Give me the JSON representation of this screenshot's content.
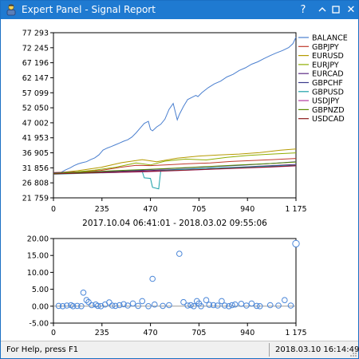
{
  "window": {
    "title": "Expert Panel - Signal Report",
    "icon": "expert-advisor-icon",
    "buttons": {
      "help": "?",
      "collapse": "chevron-up-icon",
      "close": "✕",
      "maximize": "maximize-icon"
    }
  },
  "statusbar": {
    "help_text": "For Help, press F1",
    "datetime": "2018.03.10 16:14:49"
  },
  "colors": {
    "titlebar": "#1f7ad1",
    "balance": "#4a7fcf",
    "marker": "#4a86d8",
    "zero_line": "#9a9a9a"
  },
  "chart_data": [
    {
      "type": "line",
      "title": "",
      "subtitle": "2017.10.04 06:41:01 - 2018.03.02 09:55:06",
      "xlim": [
        0,
        1175
      ],
      "ylim": [
        21759,
        77293
      ],
      "x_ticks": [
        "0",
        "235",
        "470",
        "705",
        "940",
        "1 175"
      ],
      "y_ticks": [
        "77 293",
        "72 245",
        "67 196",
        "62 147",
        "57 099",
        "52 050",
        "47 002",
        "41 953",
        "36 905",
        "31 856",
        "26 808",
        "21 759"
      ],
      "legend_position": "right",
      "series": [
        {
          "name": "BALANCE",
          "color": "#4a7fcf",
          "x": [
            0,
            30,
            60,
            80,
            100,
            120,
            140,
            160,
            180,
            200,
            220,
            240,
            260,
            280,
            300,
            320,
            340,
            360,
            380,
            400,
            420,
            440,
            460,
            470,
            480,
            500,
            520,
            540,
            560,
            580,
            600,
            610,
            630,
            650,
            670,
            690,
            700,
            720,
            750,
            780,
            810,
            840,
            870,
            900,
            930,
            960,
            990,
            1020,
            1050,
            1080,
            1110,
            1140,
            1160,
            1175
          ],
          "y": [
            29800,
            30100,
            31200,
            31800,
            32600,
            33200,
            33600,
            33900,
            34600,
            35200,
            36200,
            37800,
            38500,
            39000,
            39600,
            40200,
            40800,
            41300,
            42200,
            43600,
            45200,
            46800,
            47500,
            44800,
            44300,
            45600,
            46500,
            48200,
            51500,
            53500,
            48000,
            49800,
            52500,
            54800,
            55500,
            56200,
            55800,
            57200,
            58800,
            60100,
            61000,
            62400,
            63300,
            64600,
            65500,
            66700,
            67500,
            68600,
            69600,
            70500,
            71300,
            72300,
            73600,
            75800
          ]
        },
        {
          "name": "GBPJPY",
          "color": "#c0392b",
          "x": [
            0,
            120,
            230,
            330,
            400,
            470,
            560,
            640,
            760,
            860,
            960,
            1060,
            1175
          ],
          "y": [
            30300,
            30500,
            31000,
            32100,
            32700,
            32600,
            32900,
            33200,
            33500,
            34000,
            34300,
            34600,
            35000
          ]
        },
        {
          "name": "EURUSD",
          "color": "#b59a00",
          "x": [
            0,
            120,
            230,
            330,
            430,
            500,
            600,
            700,
            800,
            900,
            1000,
            1100,
            1175
          ],
          "y": [
            30000,
            30900,
            32000,
            33600,
            34600,
            33900,
            35100,
            35800,
            36200,
            36500,
            37000,
            37800,
            38200
          ]
        },
        {
          "name": "EURJPY",
          "color": "#8fae00",
          "x": [
            0,
            100,
            200,
            300,
            400,
            470,
            540,
            640,
            740,
            840,
            940,
            1040,
            1175
          ],
          "y": [
            30000,
            30400,
            31100,
            32000,
            33500,
            32800,
            34100,
            34800,
            34500,
            35400,
            36000,
            36400,
            36900
          ]
        },
        {
          "name": "EURCAD",
          "color": "#5b2a86",
          "x": [
            0,
            150,
            300,
            450,
            600,
            750,
            900,
            1050,
            1175
          ],
          "y": [
            30200,
            30400,
            30700,
            30900,
            31300,
            31700,
            32100,
            32600,
            33000
          ]
        },
        {
          "name": "GBPCHF",
          "color": "#3a3a8c",
          "x": [
            0,
            150,
            300,
            450,
            600,
            750,
            900,
            1050,
            1175
          ],
          "y": [
            29900,
            30200,
            30600,
            31200,
            31700,
            32200,
            32700,
            33300,
            33900
          ]
        },
        {
          "name": "GBPUSD",
          "color": "#1aa0a8",
          "x": [
            0,
            150,
            300,
            430,
            440,
            470,
            480,
            510,
            520,
            600,
            750,
            900,
            1050,
            1175
          ],
          "y": [
            29700,
            30000,
            30300,
            30600,
            28500,
            28300,
            25300,
            24800,
            30900,
            31200,
            31700,
            32000,
            32400,
            32700
          ]
        },
        {
          "name": "USDJPY",
          "color": "#b03aa0",
          "x": [
            0,
            150,
            300,
            450,
            600,
            750,
            900,
            1050,
            1175
          ],
          "y": [
            29900,
            30100,
            30300,
            30500,
            30900,
            31300,
            31700,
            32100,
            32500
          ]
        },
        {
          "name": "GBPNZD",
          "color": "#5a8a00",
          "x": [
            0,
            150,
            300,
            450,
            600,
            750,
            900,
            1050,
            1175
          ],
          "y": [
            30000,
            30400,
            30900,
            31300,
            31800,
            32300,
            32800,
            33300,
            33800
          ]
        },
        {
          "name": "USDCAD",
          "color": "#8b1a1a",
          "x": [
            0,
            150,
            300,
            450,
            600,
            750,
            900,
            1050,
            1175
          ],
          "y": [
            29800,
            30100,
            30400,
            30700,
            31000,
            31400,
            31800,
            32200,
            32600
          ]
        }
      ]
    },
    {
      "type": "scatter",
      "xlim": [
        0,
        1175
      ],
      "ylim": [
        -5,
        20
      ],
      "x_ticks": [
        "0",
        "235",
        "470",
        "705",
        "940",
        "1 175"
      ],
      "y_ticks": [
        "20.00",
        "15.00",
        "10.00",
        "5.00",
        "0.00",
        "-5.00"
      ],
      "points": {
        "x": [
          25,
          45,
          65,
          85,
          95,
          115,
          135,
          145,
          160,
          170,
          185,
          205,
          215,
          230,
          250,
          270,
          285,
          300,
          320,
          340,
          360,
          385,
          410,
          430,
          460,
          480,
          490,
          530,
          560,
          610,
          630,
          650,
          665,
          680,
          695,
          705,
          715,
          740,
          755,
          775,
          795,
          815,
          830,
          850,
          865,
          880,
          910,
          935,
          960,
          985,
          1000,
          1050,
          1090,
          1120,
          1150,
          1175
        ],
        "y": [
          0.1,
          0.0,
          0.2,
          0.3,
          0.0,
          0.1,
          0.0,
          4.0,
          1.8,
          1.2,
          0.3,
          0.5,
          0.1,
          0.0,
          0.5,
          1.1,
          0.2,
          0.1,
          0.3,
          0.6,
          0.2,
          0.8,
          0.1,
          1.5,
          0.0,
          8.1,
          0.5,
          0.1,
          0.3,
          15.5,
          1.2,
          0.2,
          0.3,
          0.0,
          1.5,
          0.8,
          0.0,
          1.8,
          0.4,
          0.3,
          0.2,
          1.5,
          0.2,
          0.0,
          0.3,
          0.5,
          0.7,
          0.2,
          0.8,
          0.1,
          0.0,
          0.3,
          0.2,
          1.8,
          0.2,
          18.5
        ]
      },
      "zero_line": 0
    }
  ]
}
